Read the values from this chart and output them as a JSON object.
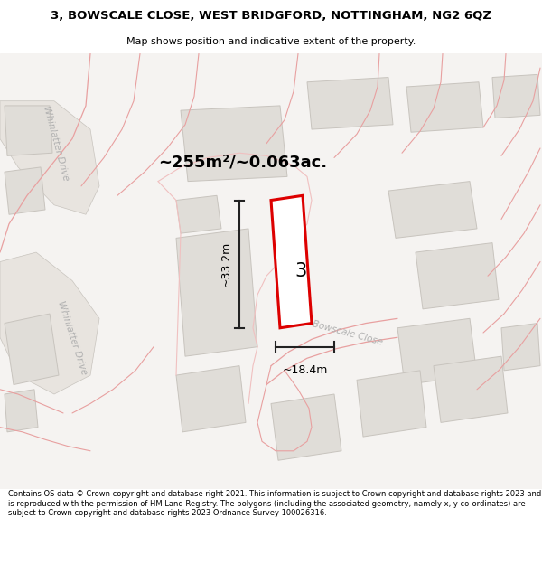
{
  "title_line1": "3, BOWSCALE CLOSE, WEST BRIDGFORD, NOTTINGHAM, NG2 6QZ",
  "title_line2": "Map shows position and indicative extent of the property.",
  "area_text": "~255m²/~0.063ac.",
  "dim_height": "~33.2m",
  "dim_width": "~18.4m",
  "plot_number": "3",
  "bg_color": "#f5f3f1",
  "bld_fill": "#e0ddd8",
  "bld_edge": "#c8c4be",
  "road_fill": "#e8e4df",
  "road_edge": "#c8c4be",
  "pink_line": "#e8a0a0",
  "light_pink": "#f0c0c0",
  "parcel_fill": "#ffffff",
  "parcel_edge": "#dd0000",
  "parcel_edge_width": 2.0,
  "dim_color": "#222222",
  "label_color": "#aaaaaa",
  "footer_text": "Contains OS data © Crown copyright and database right 2021. This information is subject to Crown copyright and database rights 2023 and is reproduced with the permission of HM Land Registry. The polygons (including the associated geometry, namely x, y co-ordinates) are subject to Crown copyright and database rights 2023 Ordnance Survey 100026316.",
  "figsize": [
    6.0,
    6.25
  ],
  "dpi": 100
}
